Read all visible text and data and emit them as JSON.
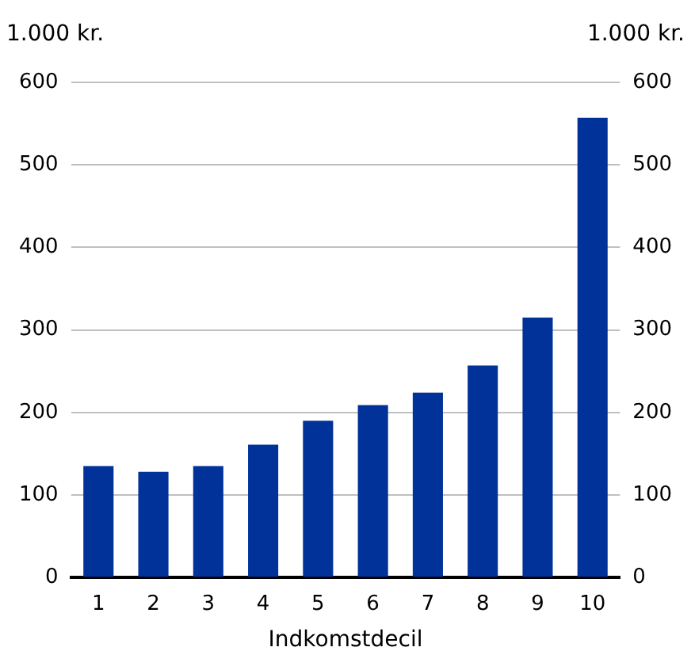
{
  "chart_data": {
    "type": "bar",
    "xlabel": "Indkomstdecil",
    "ylabel": "1.000 kr.",
    "y2label": "1.000 kr.",
    "categories": [
      "1",
      "2",
      "3",
      "4",
      "5",
      "6",
      "7",
      "8",
      "9",
      "10"
    ],
    "series": [
      {
        "color": "#003299",
        "values": [
          135,
          128,
          135,
          161,
          190,
          209,
          224,
          257,
          315,
          557
        ]
      }
    ],
    "ylim": [
      0,
      600
    ],
    "yticks": [
      0,
      100,
      200,
      300,
      400,
      500,
      600
    ],
    "y2lim": [
      0,
      600
    ],
    "y2ticks": [
      0,
      100,
      200,
      300,
      400,
      500,
      600
    ],
    "grid": "y",
    "legend": false
  }
}
